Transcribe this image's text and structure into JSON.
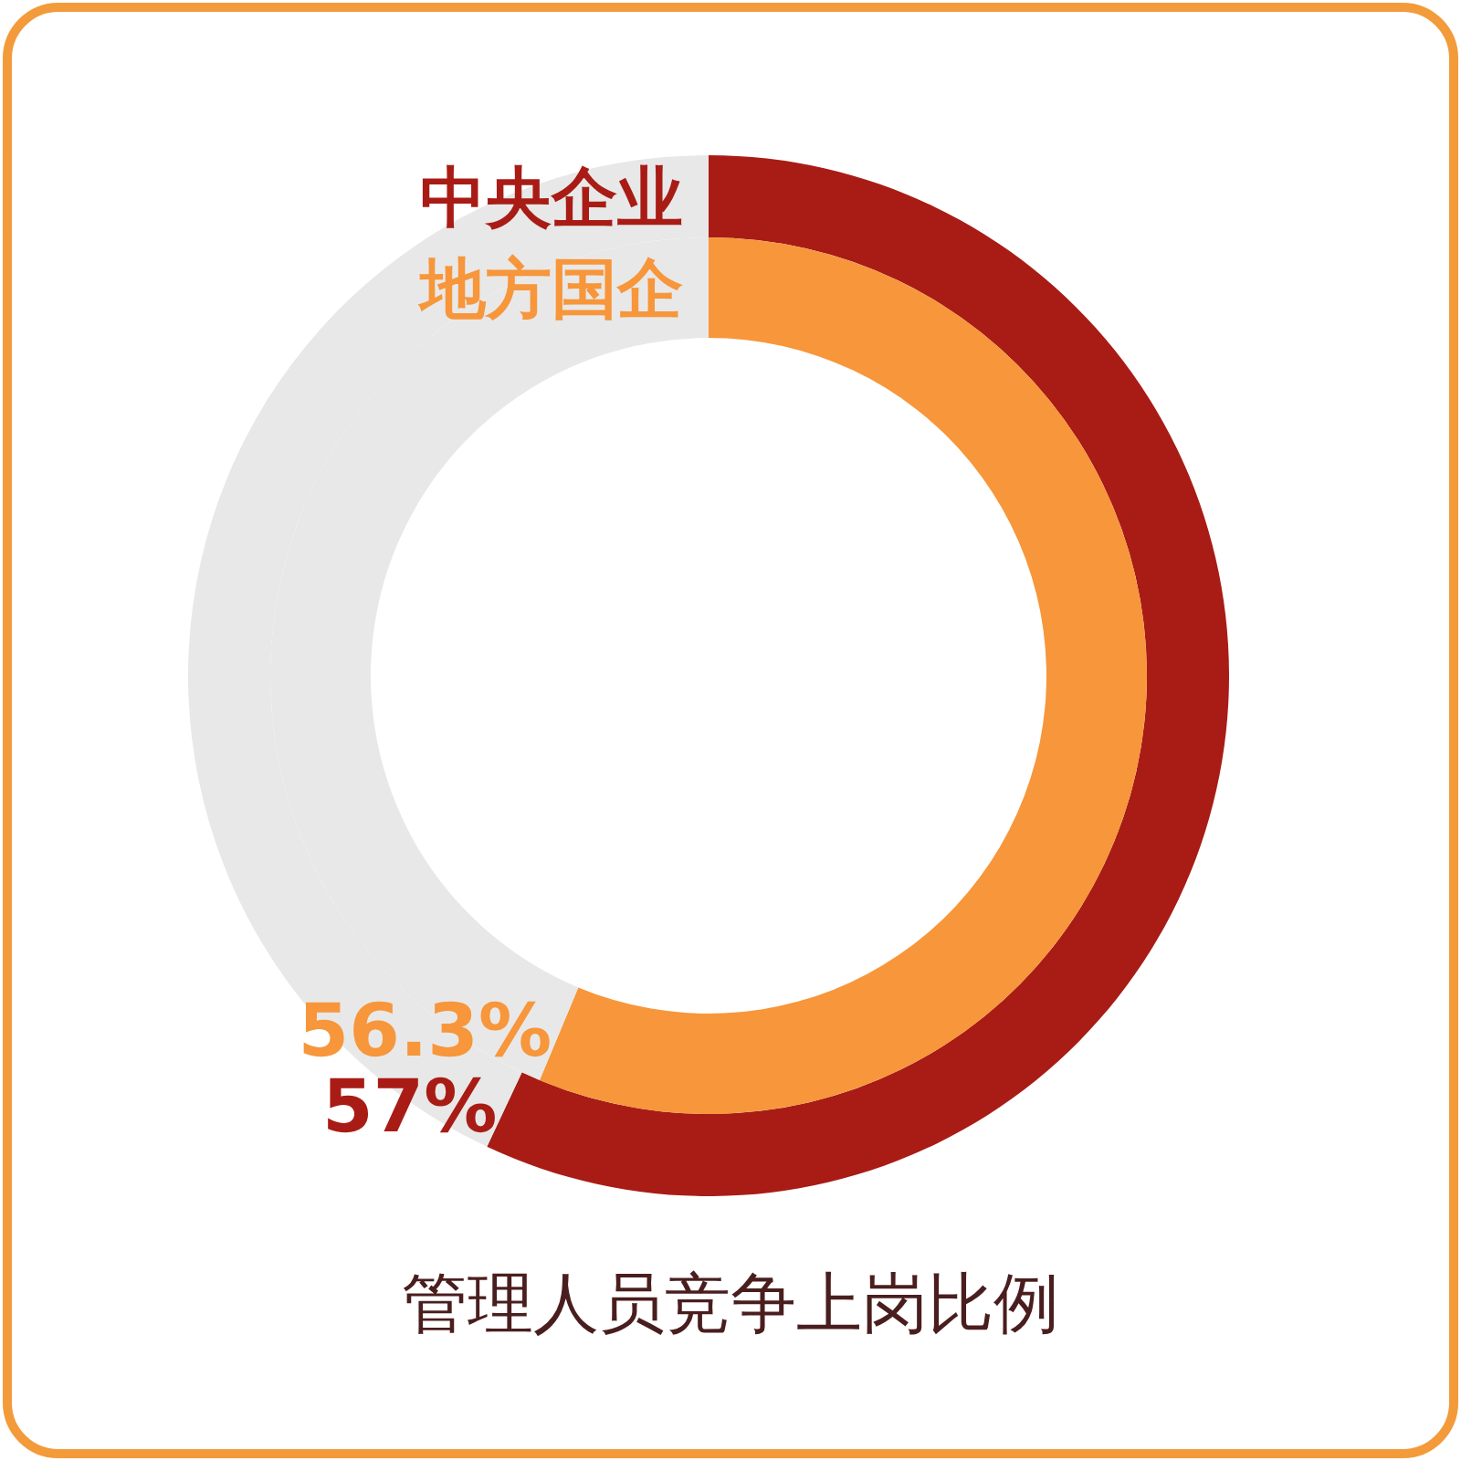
{
  "chart_data": {
    "type": "donut",
    "title": "管理人员竞争上岗比例",
    "categories": [
      null,
      null
    ],
    "series": [
      {
        "name": "中央企业",
        "colors": [
          "#a81c15",
          "#e8e8e8"
        ],
        "values": [
          57,
          43
        ],
        "value_labels": [
          "57%",
          null
        ]
      },
      {
        "name": "地方国企",
        "colors": [
          "#f7963a",
          "#e8e8e8"
        ],
        "values": [
          56.3,
          43.7
        ],
        "value_labels": [
          "56.3%",
          null
        ]
      }
    ]
  }
}
